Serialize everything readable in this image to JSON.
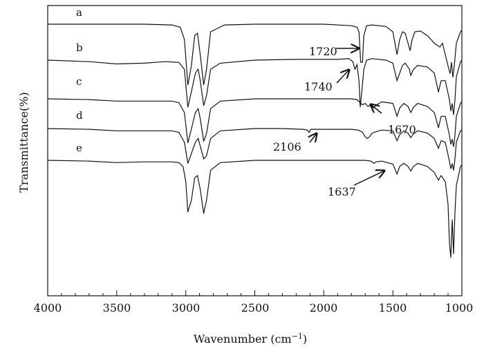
{
  "chart_data": {
    "type": "line",
    "title": "",
    "xlabel": "Wavenumber (cm",
    "xlabel_sup": "−1",
    "xlabel_close": ")",
    "ylabel": "Transmittance(%)",
    "xlim": [
      4000,
      1000
    ],
    "x_reversed": true,
    "xticks": [
      4000,
      3500,
      3000,
      2500,
      2000,
      1500,
      1000
    ],
    "y_ticks_labeled": false,
    "grid": false,
    "legend": "none",
    "series": [
      {
        "name": "a",
        "baseline": 100,
        "points": [
          [
            4000,
            100
          ],
          [
            3600,
            100
          ],
          [
            3300,
            100
          ],
          [
            3100,
            99
          ],
          [
            3040,
            96
          ],
          [
            3010,
            80
          ],
          [
            2985,
            20
          ],
          [
            2960,
            45
          ],
          [
            2935,
            85
          ],
          [
            2915,
            88
          ],
          [
            2895,
            60
          ],
          [
            2870,
            20
          ],
          [
            2850,
            40
          ],
          [
            2820,
            90
          ],
          [
            2720,
            99
          ],
          [
            2500,
            100
          ],
          [
            2000,
            100
          ],
          [
            1800,
            98
          ],
          [
            1760,
            96
          ],
          [
            1745,
            90
          ],
          [
            1733,
            50
          ],
          [
            1720,
            50
          ],
          [
            1710,
            85
          ],
          [
            1690,
            98
          ],
          [
            1650,
            99
          ],
          [
            1550,
            97
          ],
          [
            1500,
            90
          ],
          [
            1470,
            60
          ],
          [
            1450,
            80
          ],
          [
            1430,
            90
          ],
          [
            1410,
            88
          ],
          [
            1390,
            75
          ],
          [
            1375,
            65
          ],
          [
            1360,
            80
          ],
          [
            1340,
            90
          ],
          [
            1300,
            91
          ],
          [
            1250,
            85
          ],
          [
            1200,
            75
          ],
          [
            1160,
            70
          ],
          [
            1140,
            75
          ],
          [
            1120,
            60
          ],
          [
            1100,
            45
          ],
          [
            1085,
            35
          ],
          [
            1075,
            50
          ],
          [
            1065,
            30
          ],
          [
            1055,
            45
          ],
          [
            1040,
            75
          ],
          [
            1010,
            90
          ],
          [
            1000,
            92
          ]
        ]
      },
      {
        "name": "b",
        "baseline": 82,
        "points": [
          [
            4000,
            82
          ],
          [
            3700,
            80
          ],
          [
            3500,
            77
          ],
          [
            3300,
            78
          ],
          [
            3150,
            80
          ],
          [
            3050,
            79
          ],
          [
            3010,
            70
          ],
          [
            2985,
            20
          ],
          [
            2960,
            40
          ],
          [
            2930,
            65
          ],
          [
            2910,
            70
          ],
          [
            2895,
            55
          ],
          [
            2870,
            22
          ],
          [
            2850,
            35
          ],
          [
            2820,
            70
          ],
          [
            2750,
            78
          ],
          [
            2500,
            82
          ],
          [
            2200,
            83
          ],
          [
            2000,
            83
          ],
          [
            1900,
            83
          ],
          [
            1820,
            84
          ],
          [
            1790,
            80
          ],
          [
            1775,
            70
          ],
          [
            1760,
            76
          ],
          [
            1745,
            55
          ],
          [
            1736,
            20
          ],
          [
            1725,
            40
          ],
          [
            1710,
            70
          ],
          [
            1690,
            82
          ],
          [
            1650,
            84
          ],
          [
            1550,
            82
          ],
          [
            1500,
            78
          ],
          [
            1470,
            55
          ],
          [
            1450,
            65
          ],
          [
            1430,
            75
          ],
          [
            1410,
            78
          ],
          [
            1380,
            70
          ],
          [
            1370,
            62
          ],
          [
            1350,
            70
          ],
          [
            1320,
            75
          ],
          [
            1250,
            73
          ],
          [
            1200,
            65
          ],
          [
            1170,
            40
          ],
          [
            1150,
            55
          ],
          [
            1120,
            55
          ],
          [
            1090,
            30
          ],
          [
            1080,
            15
          ],
          [
            1070,
            25
          ],
          [
            1060,
            10
          ],
          [
            1050,
            30
          ],
          [
            1040,
            60
          ],
          [
            1010,
            80
          ],
          [
            1000,
            82
          ]
        ]
      },
      {
        "name": "c",
        "baseline": 68,
        "points": [
          [
            4000,
            68
          ],
          [
            3700,
            67
          ],
          [
            3500,
            65
          ],
          [
            3300,
            65
          ],
          [
            3100,
            65
          ],
          [
            3050,
            63
          ],
          [
            3010,
            50
          ],
          [
            2985,
            10
          ],
          [
            2960,
            28
          ],
          [
            2930,
            50
          ],
          [
            2910,
            55
          ],
          [
            2895,
            42
          ],
          [
            2870,
            12
          ],
          [
            2850,
            22
          ],
          [
            2820,
            55
          ],
          [
            2750,
            65
          ],
          [
            2500,
            68
          ],
          [
            2200,
            68
          ],
          [
            2000,
            68
          ],
          [
            1800,
            68
          ],
          [
            1760,
            67
          ],
          [
            1720,
            60
          ],
          [
            1700,
            62
          ],
          [
            1680,
            58
          ],
          [
            1660,
            60
          ],
          [
            1640,
            56
          ],
          [
            1620,
            60
          ],
          [
            1580,
            64
          ],
          [
            1500,
            62
          ],
          [
            1470,
            45
          ],
          [
            1450,
            56
          ],
          [
            1420,
            62
          ],
          [
            1390,
            58
          ],
          [
            1370,
            50
          ],
          [
            1350,
            57
          ],
          [
            1320,
            62
          ],
          [
            1250,
            58
          ],
          [
            1200,
            50
          ],
          [
            1170,
            30
          ],
          [
            1150,
            45
          ],
          [
            1120,
            45
          ],
          [
            1090,
            20
          ],
          [
            1080,
            8
          ],
          [
            1070,
            15
          ],
          [
            1060,
            5
          ],
          [
            1050,
            20
          ],
          [
            1040,
            45
          ],
          [
            1010,
            62
          ],
          [
            1000,
            65
          ]
        ]
      },
      {
        "name": "d",
        "baseline": 58,
        "points": [
          [
            4000,
            58
          ],
          [
            3700,
            57
          ],
          [
            3500,
            55
          ],
          [
            3300,
            55
          ],
          [
            3100,
            55
          ],
          [
            3050,
            53
          ],
          [
            3010,
            40
          ],
          [
            2985,
            12
          ],
          [
            2960,
            25
          ],
          [
            2930,
            40
          ],
          [
            2910,
            45
          ],
          [
            2895,
            35
          ],
          [
            2870,
            18
          ],
          [
            2850,
            22
          ],
          [
            2820,
            45
          ],
          [
            2750,
            55
          ],
          [
            2500,
            58
          ],
          [
            2300,
            58
          ],
          [
            2150,
            57
          ],
          [
            2120,
            56
          ],
          [
            2106,
            53
          ],
          [
            2095,
            57
          ],
          [
            2000,
            57
          ],
          [
            1800,
            57
          ],
          [
            1750,
            56
          ],
          [
            1720,
            53
          ],
          [
            1700,
            47
          ],
          [
            1685,
            45
          ],
          [
            1670,
            47
          ],
          [
            1650,
            52
          ],
          [
            1620,
            54
          ],
          [
            1580,
            56
          ],
          [
            1500,
            55
          ],
          [
            1470,
            42
          ],
          [
            1450,
            50
          ],
          [
            1420,
            55
          ],
          [
            1390,
            52
          ],
          [
            1370,
            46
          ],
          [
            1350,
            51
          ],
          [
            1320,
            55
          ],
          [
            1250,
            52
          ],
          [
            1200,
            45
          ],
          [
            1170,
            32
          ],
          [
            1150,
            42
          ],
          [
            1120,
            40
          ],
          [
            1090,
            15
          ],
          [
            1080,
            5
          ],
          [
            1070,
            12
          ],
          [
            1060,
            3
          ],
          [
            1050,
            18
          ],
          [
            1040,
            40
          ],
          [
            1010,
            55
          ],
          [
            1000,
            56
          ]
        ]
      },
      {
        "name": "e",
        "baseline": 48,
        "points": [
          [
            4000,
            48
          ],
          [
            3700,
            47
          ],
          [
            3500,
            45
          ],
          [
            3300,
            46
          ],
          [
            3100,
            46
          ],
          [
            3050,
            45
          ],
          [
            3020,
            40
          ],
          [
            3000,
            20
          ],
          [
            2985,
            -20
          ],
          [
            2960,
            -5
          ],
          [
            2935,
            25
          ],
          [
            2915,
            28
          ],
          [
            2895,
            10
          ],
          [
            2870,
            -22
          ],
          [
            2850,
            -5
          ],
          [
            2820,
            35
          ],
          [
            2750,
            45
          ],
          [
            2500,
            48
          ],
          [
            2200,
            48
          ],
          [
            2000,
            48
          ],
          [
            1800,
            48
          ],
          [
            1700,
            48
          ],
          [
            1660,
            47
          ],
          [
            1637,
            44
          ],
          [
            1620,
            46
          ],
          [
            1580,
            47
          ],
          [
            1540,
            45
          ],
          [
            1500,
            43
          ],
          [
            1470,
            30
          ],
          [
            1450,
            40
          ],
          [
            1420,
            44
          ],
          [
            1390,
            40
          ],
          [
            1370,
            34
          ],
          [
            1350,
            40
          ],
          [
            1320,
            44
          ],
          [
            1250,
            40
          ],
          [
            1200,
            32
          ],
          [
            1170,
            22
          ],
          [
            1150,
            28
          ],
          [
            1120,
            20
          ],
          [
            1100,
            -10
          ],
          [
            1090,
            -60
          ],
          [
            1080,
            -80
          ],
          [
            1070,
            -30
          ],
          [
            1060,
            -75
          ],
          [
            1050,
            -20
          ],
          [
            1040,
            15
          ],
          [
            1010,
            40
          ],
          [
            1000,
            42
          ]
        ]
      }
    ],
    "annotations": [
      {
        "text": "1720",
        "arrow_direction": "right"
      },
      {
        "text": "1740",
        "arrow_direction": "up-right"
      },
      {
        "text": "1670",
        "arrow_direction": "up-left"
      },
      {
        "text": "2106",
        "arrow_direction": "up-right"
      },
      {
        "text": "1637",
        "arrow_direction": "up-right"
      }
    ]
  }
}
